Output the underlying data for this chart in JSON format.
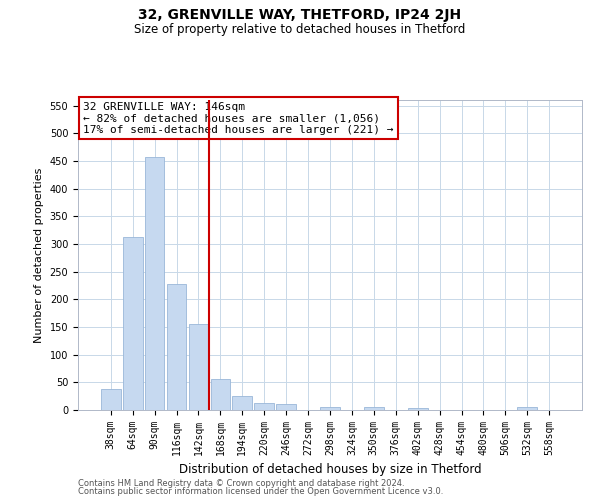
{
  "title": "32, GRENVILLE WAY, THETFORD, IP24 2JH",
  "subtitle": "Size of property relative to detached houses in Thetford",
  "xlabel": "Distribution of detached houses by size in Thetford",
  "ylabel": "Number of detached properties",
  "footnote1": "Contains HM Land Registry data © Crown copyright and database right 2024.",
  "footnote2": "Contains public sector information licensed under the Open Government Licence v3.0.",
  "categories": [
    "38sqm",
    "64sqm",
    "90sqm",
    "116sqm",
    "142sqm",
    "168sqm",
    "194sqm",
    "220sqm",
    "246sqm",
    "272sqm",
    "298sqm",
    "324sqm",
    "350sqm",
    "376sqm",
    "402sqm",
    "428sqm",
    "454sqm",
    "480sqm",
    "506sqm",
    "532sqm",
    "558sqm"
  ],
  "values": [
    38,
    312,
    457,
    228,
    155,
    56,
    26,
    13,
    10,
    0,
    5,
    0,
    6,
    0,
    4,
    0,
    0,
    0,
    0,
    5,
    0
  ],
  "bar_color": "#c6d9f0",
  "bar_edgecolor": "#9ab7d8",
  "property_line_x": 4.5,
  "annotation_text1": "32 GRENVILLE WAY: 146sqm",
  "annotation_text2": "← 82% of detached houses are smaller (1,056)",
  "annotation_text3": "17% of semi-detached houses are larger (221) →",
  "annotation_box_color": "#ffffff",
  "annotation_border_color": "#cc0000",
  "line_color": "#cc0000",
  "ylim": [
    0,
    560
  ],
  "yticks": [
    0,
    50,
    100,
    150,
    200,
    250,
    300,
    350,
    400,
    450,
    500,
    550
  ],
  "background_color": "#ffffff",
  "grid_color": "#c8d8e8",
  "title_fontsize": 10,
  "subtitle_fontsize": 8.5,
  "ylabel_fontsize": 8,
  "xlabel_fontsize": 8.5,
  "tick_fontsize": 7,
  "annot_fontsize": 8,
  "footnote_fontsize": 6
}
